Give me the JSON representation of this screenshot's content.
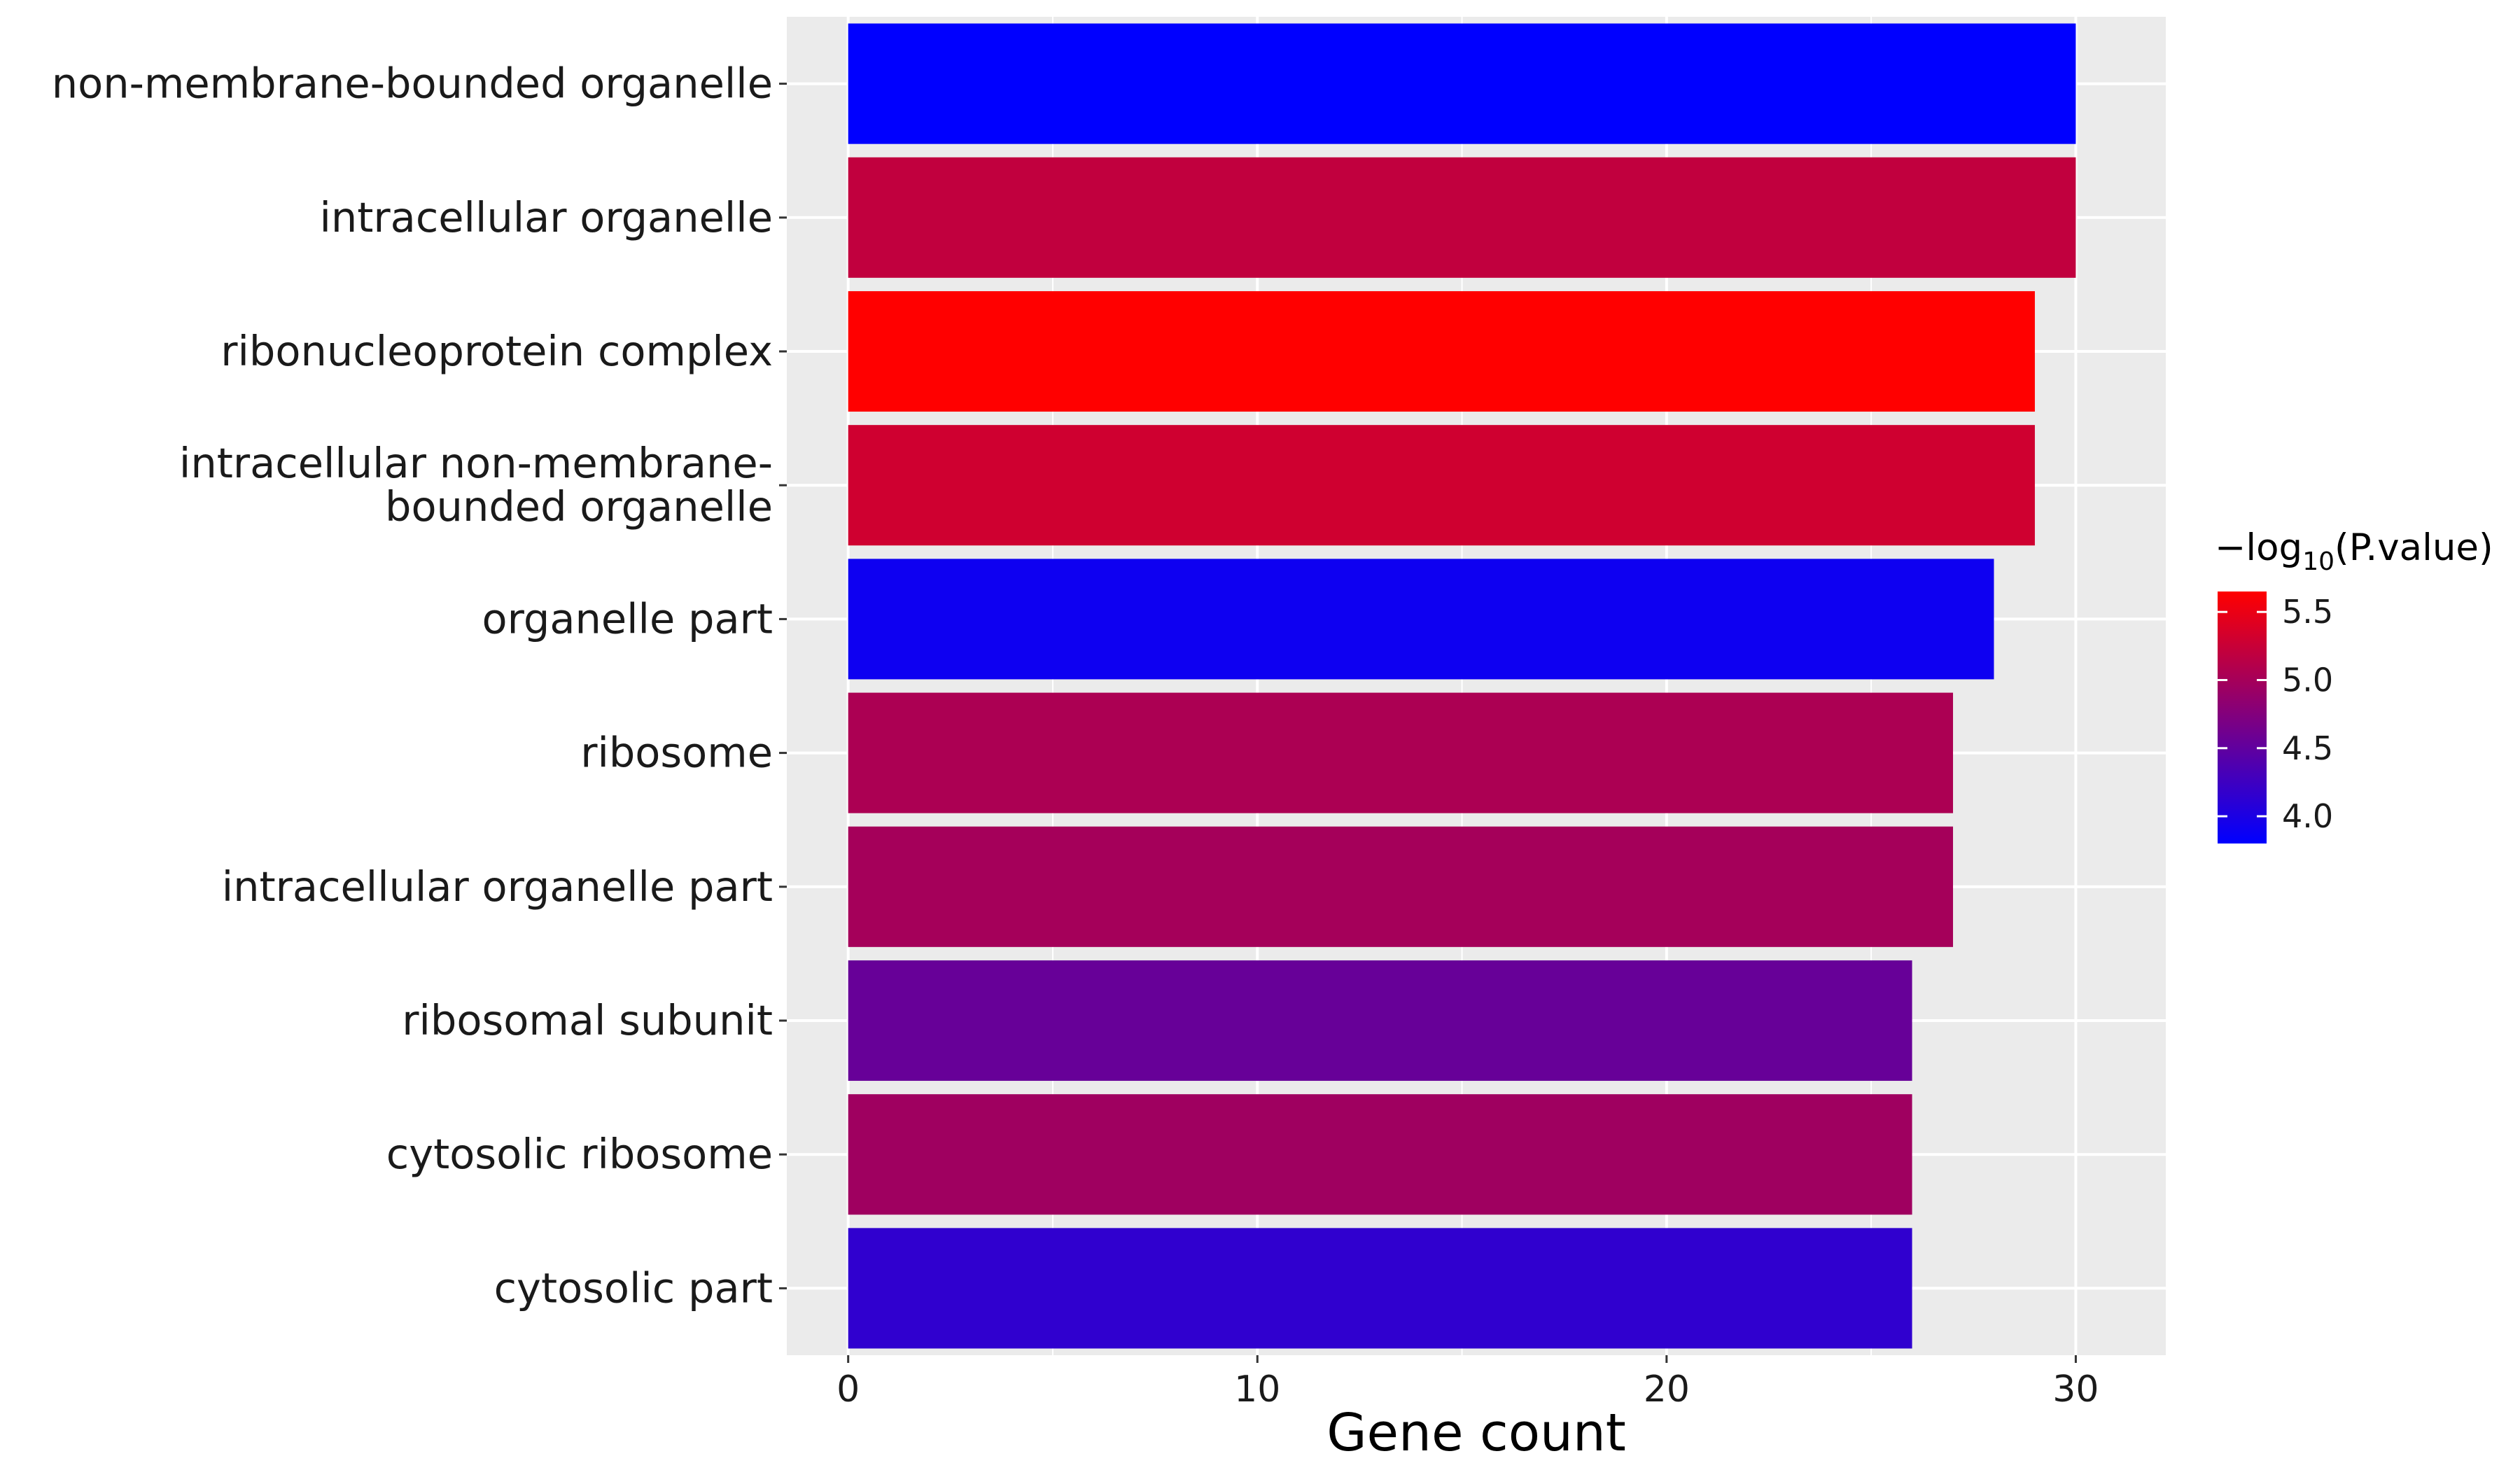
{
  "chart_data": {
    "type": "bar",
    "orientation": "horizontal",
    "categories": [
      "non-membrane-bounded organelle",
      "intracellular organelle",
      "ribonucleoprotein complex",
      "intracellular non-membrane-bounded organelle",
      "organelle part",
      "ribosome",
      "intracellular organelle part",
      "ribosomal subunit",
      "cytosolic ribosome",
      "cytosolic part"
    ],
    "category_display": [
      [
        "non-membrane-bounded organelle"
      ],
      [
        "intracellular organelle"
      ],
      [
        "ribonucleoprotein complex"
      ],
      [
        "intracellular non-membrane-",
        "bounded organelle"
      ],
      [
        "organelle part"
      ],
      [
        "ribosome"
      ],
      [
        "intracellular organelle part"
      ],
      [
        "ribosomal subunit"
      ],
      [
        "cytosolic ribosome"
      ],
      [
        "cytosolic part"
      ]
    ],
    "values": [
      30,
      30,
      29,
      29,
      28,
      27,
      27,
      26,
      26,
      26
    ],
    "color_values": [
      3.8,
      5.2,
      5.65,
      5.3,
      3.9,
      5.05,
      5.0,
      4.55,
      4.95,
      4.15
    ],
    "xlabel": "Gene count",
    "ylabel": "",
    "xlim": [
      -1.5,
      32.2
    ],
    "xticks": [
      0,
      10,
      20,
      30
    ],
    "grid": true,
    "legend": {
      "title_prefix": "−log",
      "title_subscript": "10",
      "title_suffix": "(P.value)",
      "ticks": [
        5.5,
        5.0,
        4.5,
        4.0
      ],
      "tick_labels": [
        "5.5",
        "5.0",
        "4.5",
        "4.0"
      ],
      "range": [
        3.8,
        5.65
      ],
      "low_color": "#0000FF",
      "high_color": "#FF0000",
      "placement": "right"
    },
    "panel_background": "#EBEBEB",
    "grid_color": "#FFFFFF"
  }
}
